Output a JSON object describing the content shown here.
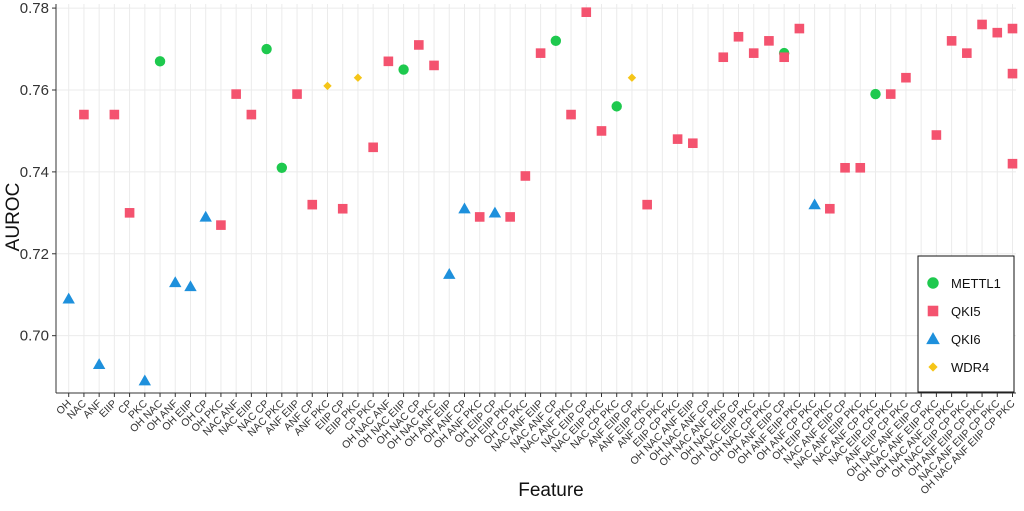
{
  "chart_data": {
    "type": "scatter",
    "xlabel": "Feature",
    "ylabel": "AUROC",
    "ylim": [
      0.686,
      0.781
    ],
    "yticks": [
      0.7,
      0.72,
      0.74,
      0.76,
      0.78
    ],
    "y_tick_labels": [
      "0.70",
      "0.72",
      "0.74",
      "0.76",
      "0.78"
    ],
    "grid": true,
    "legend_position": "bottom-right",
    "highlight_color": "#e8202a",
    "categories": [
      "OH",
      "NAC",
      "ANF",
      "EIIP",
      "CP",
      "PKC",
      "OH NAC",
      "OH ANF",
      "OH EIIP",
      "OH CP",
      "OH PKC",
      "NAC ANF",
      "NAC EIIP",
      "NAC CP",
      "NAC PKC",
      "ANF EIIP",
      "ANF CP",
      "ANF PKC",
      "EIIP CP",
      "EIIP PKC",
      "CP PKC",
      "OH NAC ANF",
      "OH NAC EIIP",
      "OH NAC CP",
      "OH NAC PKC",
      "OH ANF EIIP",
      "OH ANF CP",
      "OH ANF PKC",
      "OH EIIP CP",
      "OH EIIP PKC",
      "OH CP PKC",
      "NAC ANF EIIP",
      "NAC ANF CP",
      "NAC ANF PKC",
      "NAC EIIP CP",
      "NAC EIIP PKC",
      "NAC CP PKC",
      "ANF EIIP CP",
      "ANF EIIP PKC",
      "ANF CP PKC",
      "EIIP CP PKC",
      "OH NAC ANF EIIP",
      "OH NAC ANF CP",
      "OH NAC ANF PKC",
      "OH NAC EIIP CP",
      "OH NAC EIIP PKC",
      "OH NAC CP PKC",
      "OH ANF EIIP CP",
      "OH ANF EIIP PKC",
      "OH ANF CP PKC",
      "OH EIIP CP PKC",
      "NAC ANF EIIP CP",
      "NAC ANF EIIP PKC",
      "NAC ANF CP PKC",
      "NAC EIIP CP PKC",
      "ANF EIIP CP PKC",
      "OH NAC ANF EIIP CP",
      "OH NAC ANF EIIP PKC",
      "OH NAC ANF CP PKC",
      "OH NAC EIIP CP PKC",
      "OH ANF EIIP CP PKC",
      "NAC ANF EIIP CP PKC",
      "OH NAC ANF EIIP CP PKC"
    ],
    "highlighted_category": "NAC EIIP CP",
    "series": [
      {
        "name": "METTL1",
        "marker": "circle",
        "color": "#1ec94e",
        "points": [
          {
            "x": "OH NAC",
            "y": 0.767
          },
          {
            "x": "NAC CP",
            "y": 0.77
          },
          {
            "x": "NAC PKC",
            "y": 0.741
          },
          {
            "x": "OH NAC EIIP",
            "y": 0.765
          },
          {
            "x": "NAC ANF CP",
            "y": 0.772
          },
          {
            "x": "NAC CP PKC",
            "y": 0.756
          },
          {
            "x": "OH ANF EIIP CP",
            "y": 0.769
          },
          {
            "x": "NAC ANF CP PKC",
            "y": 0.759
          }
        ]
      },
      {
        "name": "QKI5",
        "marker": "square",
        "color": "#f4536f",
        "points": [
          {
            "x": "NAC",
            "y": 0.754
          },
          {
            "x": "EIIP",
            "y": 0.754
          },
          {
            "x": "CP",
            "y": 0.73
          },
          {
            "x": "OH PKC",
            "y": 0.727
          },
          {
            "x": "NAC ANF",
            "y": 0.759
          },
          {
            "x": "NAC EIIP",
            "y": 0.754
          },
          {
            "x": "ANF EIIP",
            "y": 0.759
          },
          {
            "x": "ANF CP",
            "y": 0.732
          },
          {
            "x": "EIIP CP",
            "y": 0.731
          },
          {
            "x": "CP PKC",
            "y": 0.746
          },
          {
            "x": "OH NAC ANF",
            "y": 0.767
          },
          {
            "x": "OH NAC CP",
            "y": 0.771
          },
          {
            "x": "OH NAC PKC",
            "y": 0.766
          },
          {
            "x": "OH ANF PKC",
            "y": 0.729
          },
          {
            "x": "OH EIIP PKC",
            "y": 0.729
          },
          {
            "x": "OH CP PKC",
            "y": 0.739
          },
          {
            "x": "NAC ANF EIIP",
            "y": 0.769
          },
          {
            "x": "NAC ANF PKC",
            "y": 0.754
          },
          {
            "x": "NAC EIIP CP",
            "y": 0.779
          },
          {
            "x": "NAC EIIP PKC",
            "y": 0.75
          },
          {
            "x": "ANF EIIP PKC",
            "y": 0.732
          },
          {
            "x": "EIIP CP PKC",
            "y": 0.748
          },
          {
            "x": "OH NAC ANF EIIP",
            "y": 0.747
          },
          {
            "x": "OH NAC ANF PKC",
            "y": 0.768
          },
          {
            "x": "OH NAC EIIP CP",
            "y": 0.773
          },
          {
            "x": "OH NAC EIIP PKC",
            "y": 0.769
          },
          {
            "x": "OH NAC CP PKC",
            "y": 0.772
          },
          {
            "x": "OH ANF EIIP CP",
            "y": 0.768
          },
          {
            "x": "OH ANF EIIP PKC",
            "y": 0.775
          },
          {
            "x": "OH EIIP CP PKC",
            "y": 0.731
          },
          {
            "x": "NAC ANF EIIP CP",
            "y": 0.741
          },
          {
            "x": "NAC ANF EIIP PKC",
            "y": 0.741
          },
          {
            "x": "NAC EIIP CP PKC",
            "y": 0.759
          },
          {
            "x": "ANF EIIP CP PKC",
            "y": 0.763
          },
          {
            "x": "OH NAC ANF EIIP PKC",
            "y": 0.749
          },
          {
            "x": "OH NAC ANF CP PKC",
            "y": 0.772
          },
          {
            "x": "OH NAC EIIP CP PKC",
            "y": 0.769
          },
          {
            "x": "OH ANF EIIP CP PKC",
            "y": 0.776
          },
          {
            "x": "NAC ANF EIIP CP PKC",
            "y": 0.774
          },
          {
            "x": "OH NAC ANF EIIP CP PKC",
            "y": 0.742
          },
          {
            "x": "OH NAC ANF EIIP CP PKC",
            "y": 0.764
          },
          {
            "x": "OH NAC ANF EIIP CP PKC",
            "y": 0.775
          }
        ]
      },
      {
        "name": "QKI6",
        "marker": "triangle",
        "color": "#1e90dc",
        "points": [
          {
            "x": "OH",
            "y": 0.709
          },
          {
            "x": "ANF",
            "y": 0.693
          },
          {
            "x": "PKC",
            "y": 0.689
          },
          {
            "x": "OH ANF",
            "y": 0.713
          },
          {
            "x": "OH EIIP",
            "y": 0.712
          },
          {
            "x": "OH CP",
            "y": 0.729
          },
          {
            "x": "OH ANF EIIP",
            "y": 0.715
          },
          {
            "x": "OH ANF CP",
            "y": 0.731
          },
          {
            "x": "OH EIIP CP",
            "y": 0.73
          },
          {
            "x": "OH ANF CP PKC",
            "y": 0.732
          }
        ]
      },
      {
        "name": "WDR4",
        "marker": "diamond",
        "color": "#f5c518",
        "points": [
          {
            "x": "ANF PKC",
            "y": 0.761
          },
          {
            "x": "EIIP PKC",
            "y": 0.763
          },
          {
            "x": "ANF EIIP CP",
            "y": 0.763
          }
        ]
      }
    ]
  }
}
